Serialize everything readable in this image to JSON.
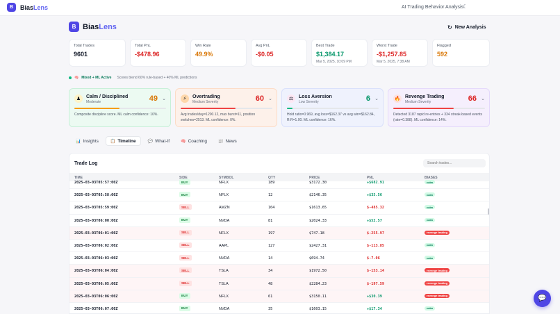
{
  "topbar": {
    "logo_letter": "B",
    "brand_a": "Bias",
    "brand_b": "Lens",
    "nav_label": "AI Trading Behavior Analysis",
    "theme_icon": "moon-icon"
  },
  "header": {
    "logo_letter": "B",
    "brand_a": "Bias",
    "brand_b": "Lens",
    "new_analysis_label": "New Analysis",
    "new_analysis_icon": "refresh-icon"
  },
  "stats": [
    {
      "label": "Total Trades",
      "value": "9601",
      "color": "#111827",
      "sub": ""
    },
    {
      "label": "Total PnL",
      "value": "-$478.96",
      "color": "#dc2626",
      "sub": ""
    },
    {
      "label": "Win Rate",
      "value": "49.9%",
      "color": "#d97706",
      "sub": ""
    },
    {
      "label": "Avg PnL",
      "value": "-$0.05",
      "color": "#dc2626",
      "sub": ""
    },
    {
      "label": "Best Trade",
      "value": "$1,384.17",
      "color": "#059669",
      "sub": "Mar 5, 2025, 10:09 PM"
    },
    {
      "label": "Worst Trade",
      "value": "-$1,257.85",
      "color": "#dc2626",
      "sub": "Mar 5, 2025, 7:38 AM"
    },
    {
      "label": "Flagged",
      "value": "592",
      "color": "#d97706",
      "sub": ""
    }
  ],
  "status": {
    "icon": "🧠",
    "label": "Mixed + ML Active",
    "note": "Scores blend 60% rule-based + 40% ML predictions"
  },
  "biases": [
    {
      "name": "Calm / Disciplined",
      "severity": "Moderate",
      "score": "49",
      "score_color": "#d97706",
      "fill": 0.49,
      "fill_color": "#f59e0b",
      "bg": "#ecfaf2",
      "border": "#c7f0d8",
      "icon": "♟",
      "icon_bg": "#fef3c7",
      "desc": "Composite discipline score. ML calm confidence: 10%."
    },
    {
      "name": "Overtrading",
      "severity": "Medium Severity",
      "score": "60",
      "score_color": "#dc2626",
      "fill": 0.6,
      "fill_color": "#ef4444",
      "bg": "#fdf1ea",
      "border": "#fcdcc7",
      "icon": "⚡",
      "icon_bg": "#fed7aa",
      "desc": "Avg trades/day=1200.12, max burst=11, position switches=2513. ML confidence: 0%."
    },
    {
      "name": "Loss Aversion",
      "severity": "Low Severity",
      "score": "6",
      "score_color": "#059669",
      "fill": 0.06,
      "fill_color": "#10b981",
      "bg": "#eff2fd",
      "border": "#d9e0fb",
      "icon": "⚖",
      "icon_bg": "#fce7f3",
      "desc": "Hold ratio=0.969, avg loss=$162.37 vs avg win=$162.84, R:R=1.00. ML confidence: 16%."
    },
    {
      "name": "Revenge Trading",
      "severity": "Medium Severity",
      "score": "66",
      "score_color": "#dc2626",
      "fill": 0.66,
      "fill_color": "#ef4444",
      "bg": "#f5effd",
      "border": "#e4d9fb",
      "icon": "🔥",
      "icon_bg": "#fde2e2",
      "desc": "Detected 3187 rapid re-entries + 334 streak-based events (rate=0.388). ML confidence: 14%."
    }
  ],
  "tabs": [
    {
      "label": "Insights",
      "icon": "📊"
    },
    {
      "label": "Timeline",
      "icon": "📋"
    },
    {
      "label": "What-If",
      "icon": "💬"
    },
    {
      "label": "Coaching",
      "icon": "🧠"
    },
    {
      "label": "News",
      "icon": "📰"
    }
  ],
  "log": {
    "title": "Trade Log",
    "search_placeholder": "Search trades...",
    "headers": [
      "TIME",
      "SIDE",
      "SYMBOL",
      "QTY",
      "PRICE",
      "PNL",
      "BIASES"
    ],
    "rows": [
      {
        "time": "2025-03-03T05:57:00Z",
        "side": "BUY",
        "symbol": "NFLX",
        "qty": "189",
        "price": "$3172.30",
        "pnl": "+$682.91",
        "bias": "calm",
        "hl": false
      },
      {
        "time": "2025-03-03T05:58:00Z",
        "side": "BUY",
        "symbol": "NFLX",
        "qty": "12",
        "price": "$2146.35",
        "pnl": "+$35.56",
        "bias": "calm",
        "hl": false
      },
      {
        "time": "2025-03-03T05:59:00Z",
        "side": "SELL",
        "symbol": "AMZN",
        "qty": "104",
        "price": "$1613.65",
        "pnl": "$-485.32",
        "bias": "calm",
        "hl": false
      },
      {
        "time": "2025-03-03T06:00:00Z",
        "side": "BUY",
        "symbol": "NVDA",
        "qty": "81",
        "price": "$2024.33",
        "pnl": "+$52.57",
        "bias": "calm",
        "hl": false
      },
      {
        "time": "2025-03-03T06:01:00Z",
        "side": "SELL",
        "symbol": "NFLX",
        "qty": "197",
        "price": "$747.18",
        "pnl": "$-255.97",
        "bias": "revenge trading",
        "hl": true
      },
      {
        "time": "2025-03-03T06:02:00Z",
        "side": "SELL",
        "symbol": "AAPL",
        "qty": "127",
        "price": "$2427.31",
        "pnl": "$-113.85",
        "bias": "calm",
        "hl": false
      },
      {
        "time": "2025-03-03T06:03:00Z",
        "side": "SELL",
        "symbol": "NVDA",
        "qty": "14",
        "price": "$694.74",
        "pnl": "$-7.06",
        "bias": "calm",
        "hl": false
      },
      {
        "time": "2025-03-03T06:04:00Z",
        "side": "SELL",
        "symbol": "TSLA",
        "qty": "34",
        "price": "$1972.50",
        "pnl": "$-153.14",
        "bias": "revenge trading",
        "hl": true
      },
      {
        "time": "2025-03-03T06:05:00Z",
        "side": "SELL",
        "symbol": "TSLA",
        "qty": "48",
        "price": "$2284.23",
        "pnl": "$-197.59",
        "bias": "revenge trading",
        "hl": true
      },
      {
        "time": "2025-03-03T06:06:00Z",
        "side": "BUY",
        "symbol": "NFLX",
        "qty": "61",
        "price": "$3150.11",
        "pnl": "+$30.39",
        "bias": "revenge trading",
        "hl": true
      },
      {
        "time": "2025-03-03T06:07:00Z",
        "side": "BUY",
        "symbol": "NVDA",
        "qty": "35",
        "price": "$1603.15",
        "pnl": "+$17.34",
        "bias": "calm",
        "hl": false
      }
    ]
  },
  "chat": {
    "icon": "chat-icon",
    "glyph": "💬"
  }
}
